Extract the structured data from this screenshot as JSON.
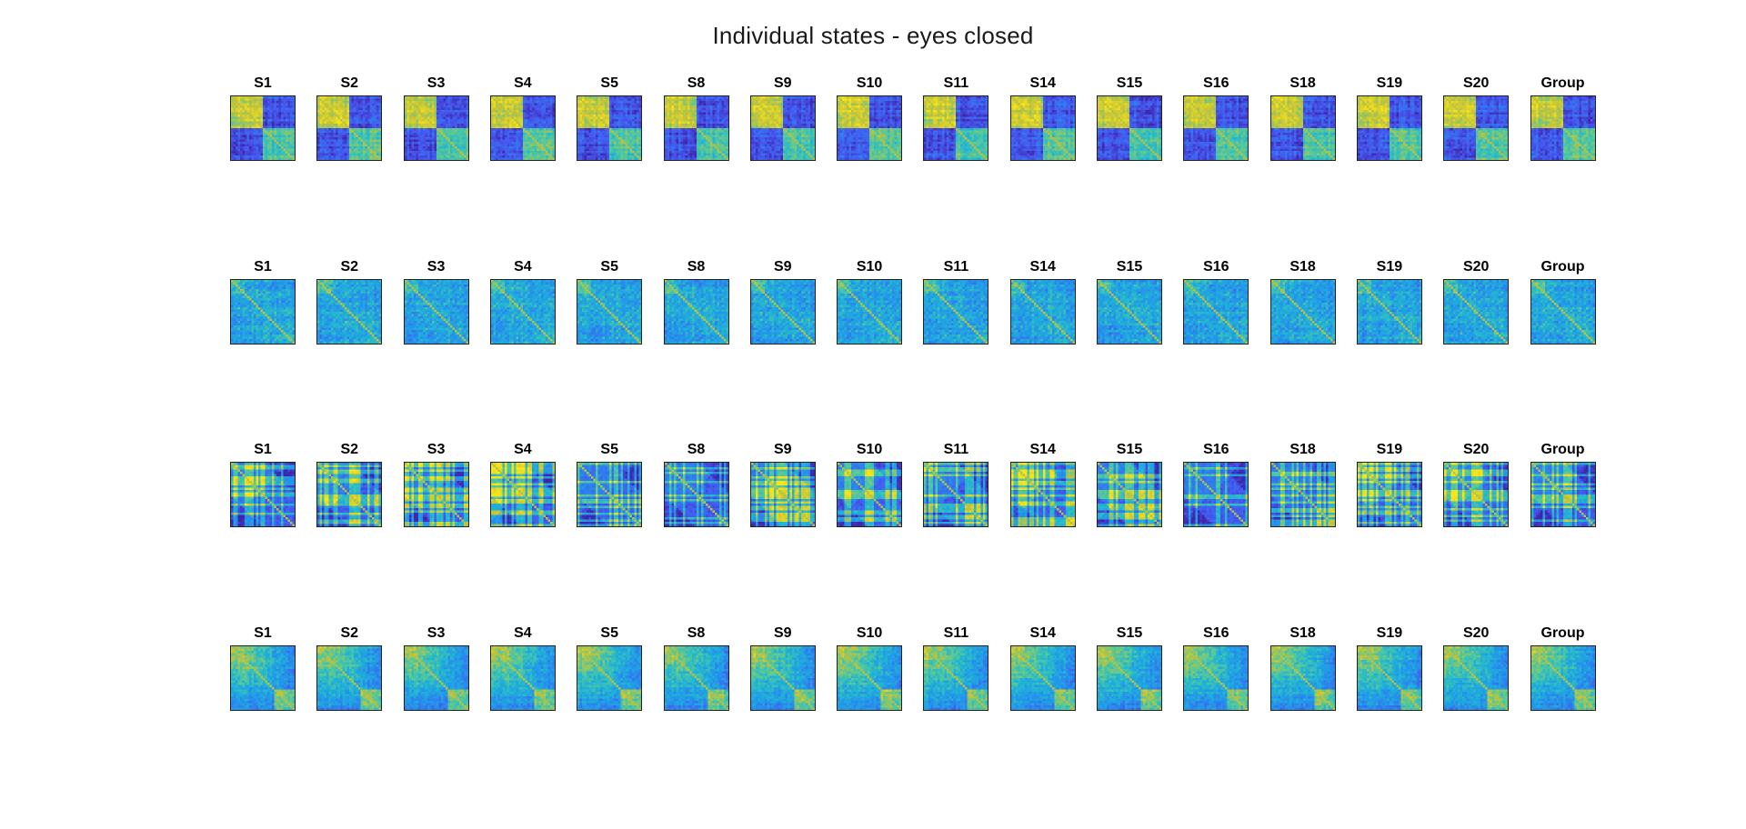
{
  "title": "Individual states - eyes closed",
  "colors": {
    "low": "#3e26a8",
    "mid": "#1fa4e0",
    "high": "#f9e41a"
  },
  "chart_data": {
    "type": "heatmap",
    "title": "Individual states - eyes closed",
    "layout": "4 rows x 16 columns of correlation-matrix heatmaps",
    "colormap": "parula",
    "panel_titles": [
      "S1",
      "S2",
      "S3",
      "S4",
      "S5",
      "S8",
      "S9",
      "S10",
      "S11",
      "S14",
      "S15",
      "S16",
      "S18",
      "S19",
      "S20",
      "Group"
    ],
    "rows": [
      {
        "state": 1,
        "pattern": "block",
        "panels": [
          {
            "label": "S1"
          },
          {
            "label": "S2"
          },
          {
            "label": "S3"
          },
          {
            "label": "S4"
          },
          {
            "label": "S5"
          },
          {
            "label": "S8"
          },
          {
            "label": "S9"
          },
          {
            "label": "S10"
          },
          {
            "label": "S11"
          },
          {
            "label": "S14"
          },
          {
            "label": "S15"
          },
          {
            "label": "S16"
          },
          {
            "label": "S18"
          },
          {
            "label": "S19"
          },
          {
            "label": "S20"
          },
          {
            "label": "Group"
          }
        ]
      },
      {
        "state": 2,
        "pattern": "diffuse",
        "panels": [
          {
            "label": "S1"
          },
          {
            "label": "S2"
          },
          {
            "label": "S3"
          },
          {
            "label": "S4"
          },
          {
            "label": "S5"
          },
          {
            "label": "S8"
          },
          {
            "label": "S9"
          },
          {
            "label": "S10"
          },
          {
            "label": "S11"
          },
          {
            "label": "S14"
          },
          {
            "label": "S15"
          },
          {
            "label": "S16"
          },
          {
            "label": "S18"
          },
          {
            "label": "S19"
          },
          {
            "label": "S20"
          },
          {
            "label": "Group"
          }
        ]
      },
      {
        "state": 3,
        "pattern": "striped",
        "panels": [
          {
            "label": "S1"
          },
          {
            "label": "S2"
          },
          {
            "label": "S3"
          },
          {
            "label": "S4"
          },
          {
            "label": "S5"
          },
          {
            "label": "S8"
          },
          {
            "label": "S9"
          },
          {
            "label": "S10"
          },
          {
            "label": "S11"
          },
          {
            "label": "S14"
          },
          {
            "label": "S15"
          },
          {
            "label": "S16"
          },
          {
            "label": "S18"
          },
          {
            "label": "S19"
          },
          {
            "label": "S20"
          },
          {
            "label": "Group"
          }
        ]
      },
      {
        "state": 4,
        "pattern": "gradient",
        "panels": [
          {
            "label": "S1"
          },
          {
            "label": "S2"
          },
          {
            "label": "S3"
          },
          {
            "label": "S4"
          },
          {
            "label": "S5"
          },
          {
            "label": "S8"
          },
          {
            "label": "S9"
          },
          {
            "label": "S10"
          },
          {
            "label": "S11"
          },
          {
            "label": "S14"
          },
          {
            "label": "S15"
          },
          {
            "label": "S16"
          },
          {
            "label": "S18"
          },
          {
            "label": "S19"
          },
          {
            "label": "S20"
          },
          {
            "label": "Group"
          }
        ]
      }
    ]
  }
}
